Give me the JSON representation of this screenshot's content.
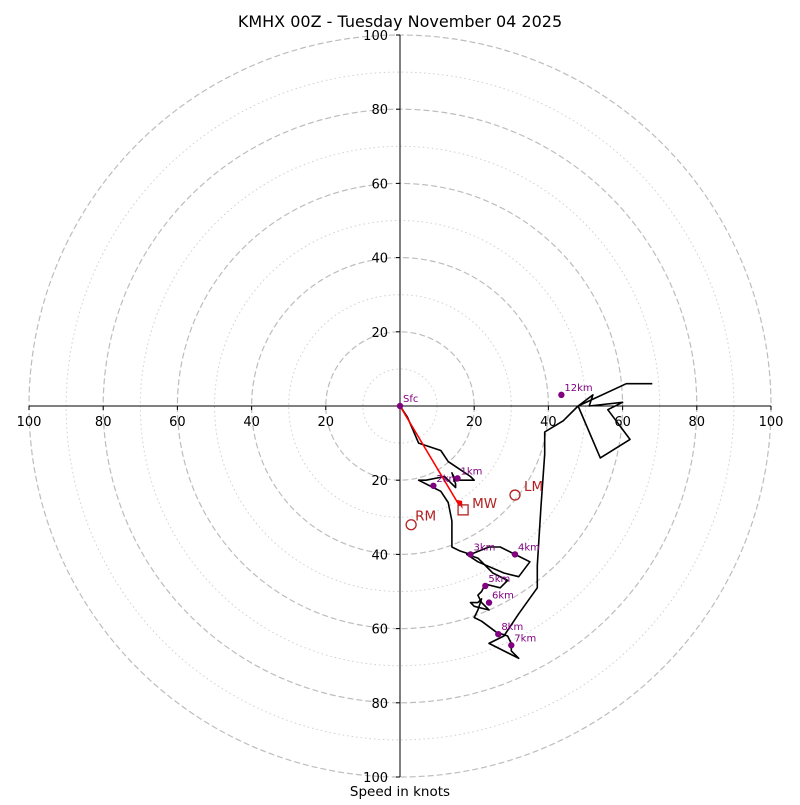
{
  "chart_data": {
    "type": "hodograph",
    "title": "KMHX 00Z - Tuesday November 04 2025",
    "xlabel": "Speed in knots",
    "xlim": [
      -100,
      100
    ],
    "ylim": [
      -100,
      100
    ],
    "ring_major": [
      20,
      40,
      60,
      80,
      100
    ],
    "ring_minor": [
      10,
      30,
      50,
      70,
      90
    ],
    "tick_values": [
      20,
      40,
      60,
      80,
      100
    ],
    "x_tick_labels": [
      "100",
      "80",
      "60",
      "40",
      "20",
      "20",
      "40",
      "60",
      "80",
      "100"
    ],
    "y_tick_labels": [
      "100",
      "80",
      "60",
      "40",
      "20",
      "20",
      "40",
      "60",
      "80",
      "100"
    ],
    "hodograph": {
      "color": "#000000",
      "points": [
        [
          0,
          0
        ],
        [
          2,
          -3
        ],
        [
          5,
          -10
        ],
        [
          11,
          -12
        ],
        [
          13,
          -15
        ],
        [
          16,
          -17
        ],
        [
          19,
          -19
        ],
        [
          20,
          -20
        ],
        [
          15,
          -20
        ],
        [
          14,
          -18
        ],
        [
          15,
          -21
        ],
        [
          15,
          -22
        ],
        [
          12,
          -19
        ],
        [
          7,
          -20
        ],
        [
          5,
          -20
        ],
        [
          9,
          -22
        ],
        [
          11,
          -23
        ],
        [
          13,
          -26
        ],
        [
          14,
          -31
        ],
        [
          14,
          -38
        ],
        [
          16,
          -39
        ],
        [
          19,
          -40
        ],
        [
          24,
          -38
        ],
        [
          27,
          -38
        ],
        [
          31,
          -40
        ],
        [
          35,
          -42
        ],
        [
          32,
          -46
        ],
        [
          28,
          -45
        ],
        [
          21,
          -42
        ],
        [
          18,
          -40
        ],
        [
          21,
          -41
        ],
        [
          25,
          -45
        ],
        [
          29,
          -47
        ],
        [
          27,
          -49
        ],
        [
          23,
          -48
        ],
        [
          22,
          -50
        ],
        [
          21,
          -51
        ],
        [
          22,
          -53
        ],
        [
          24,
          -55
        ],
        [
          20,
          -54
        ],
        [
          19,
          -53
        ],
        [
          21,
          -53
        ],
        [
          22,
          -52
        ],
        [
          21,
          -55
        ],
        [
          20,
          -57
        ],
        [
          22,
          -58
        ],
        [
          26,
          -61
        ],
        [
          29,
          -62
        ],
        [
          30,
          -64
        ],
        [
          30,
          -66
        ],
        [
          32,
          -68
        ],
        [
          28,
          -66
        ],
        [
          24,
          -64
        ],
        [
          28,
          -62
        ],
        [
          32,
          -56
        ],
        [
          37,
          -49
        ],
        [
          37,
          -43
        ],
        [
          38,
          -27
        ],
        [
          39,
          -13
        ],
        [
          39,
          -7
        ],
        [
          44,
          -4
        ],
        [
          48,
          0
        ],
        [
          52,
          3
        ],
        [
          51,
          0
        ],
        [
          60,
          1
        ],
        [
          56,
          -1
        ],
        [
          62,
          -9
        ],
        [
          54,
          -14
        ],
        [
          48,
          0
        ],
        [
          61,
          6
        ],
        [
          68,
          6
        ]
      ]
    },
    "height_markers": {
      "color": "#800080",
      "labels": [
        "Sfc",
        "1km",
        "2km",
        "3km",
        "4km",
        "5km",
        "6km",
        "8km",
        "7km",
        "12km"
      ],
      "points": [
        [
          0,
          0
        ],
        [
          15.5,
          -19.5
        ],
        [
          9,
          -21.5
        ],
        [
          19,
          -40
        ],
        [
          31,
          -40
        ],
        [
          23,
          -48.5
        ],
        [
          24,
          -53
        ],
        [
          26.5,
          -61.5
        ],
        [
          30,
          -64.5
        ],
        [
          43.5,
          3
        ]
      ]
    },
    "storm_motion": {
      "color": "#b22222",
      "labels": [
        "MW",
        "LM",
        "RM"
      ],
      "mw": [
        17,
        -28
      ],
      "lm": [
        31,
        -24
      ],
      "rm": [
        3,
        -32
      ]
    }
  }
}
